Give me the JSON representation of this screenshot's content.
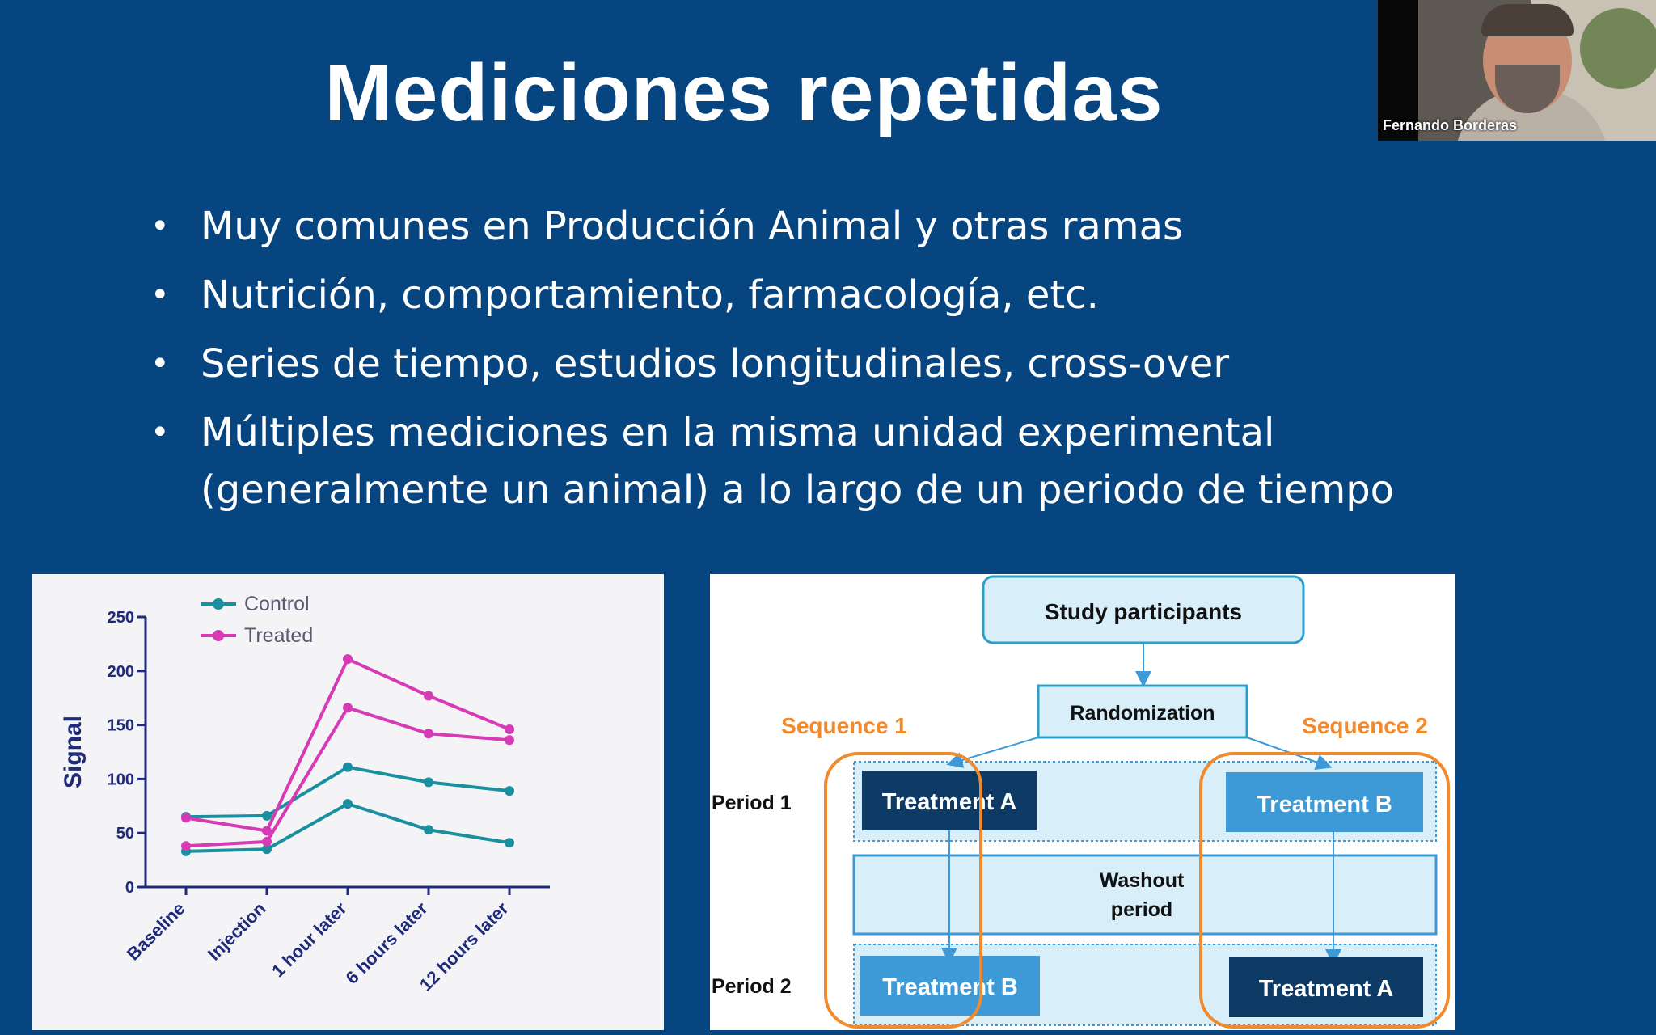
{
  "slide": {
    "title": "Mediciones repetidas",
    "bullets": [
      {
        "lines": [
          "Muy comunes en Producción Animal y otras ramas"
        ]
      },
      {
        "lines": [
          "Nutrición, comportamiento, farmacología, etc."
        ]
      },
      {
        "lines": [
          "Series de tiempo, estudios longitudinales, cross-over"
        ]
      },
      {
        "lines": [
          "Múltiples mediciones en la misma unidad experimental",
          "(generalmente un animal) a lo largo de un periodo de tiempo"
        ]
      }
    ],
    "bullet_symbol": "•"
  },
  "webcam": {
    "participant_name": "Fernando Borderas"
  },
  "colors": {
    "background": "#06457f",
    "control": "#1a8fa0",
    "treated": "#d63ab5",
    "axis": "#1f2a7a",
    "sequence": "#f08a2c",
    "box_dark": "#0d3b66",
    "box_mid": "#3d9ad6",
    "box_light": "#d8eef9"
  },
  "chart_data": {
    "type": "line",
    "categories": [
      "Baseline",
      "Injection",
      "1 hour later",
      "6 hours later",
      "12 hours later"
    ],
    "series": [
      {
        "name": "Control",
        "values": [
          65,
          66,
          111,
          97,
          89
        ]
      },
      {
        "name": "Control",
        "values": [
          33,
          35,
          77,
          53,
          41
        ]
      },
      {
        "name": "Treated",
        "values": [
          64,
          52,
          211,
          177,
          146
        ]
      },
      {
        "name": "Treated",
        "values": [
          38,
          42,
          166,
          142,
          136
        ]
      }
    ],
    "legend": [
      "Control",
      "Treated"
    ],
    "ylabel": "Signal",
    "xlabel": "",
    "ylim": [
      0,
      250
    ],
    "yticks": [
      0,
      50,
      100,
      150,
      200,
      250
    ],
    "legend_position": "top-left",
    "grid": false
  },
  "diagram": {
    "study_participants": "Study participants",
    "randomization": "Randomization",
    "sequence1": "Sequence 1",
    "sequence2": "Sequence 2",
    "period1": "Period 1",
    "period2": "Period 2",
    "washout_line1": "Washout",
    "washout_line2": "period",
    "seq1_period1": "Treatment A",
    "seq2_period1": "Treatment B",
    "seq1_period2": "Treatment B",
    "seq2_period2": "Treatment A"
  }
}
